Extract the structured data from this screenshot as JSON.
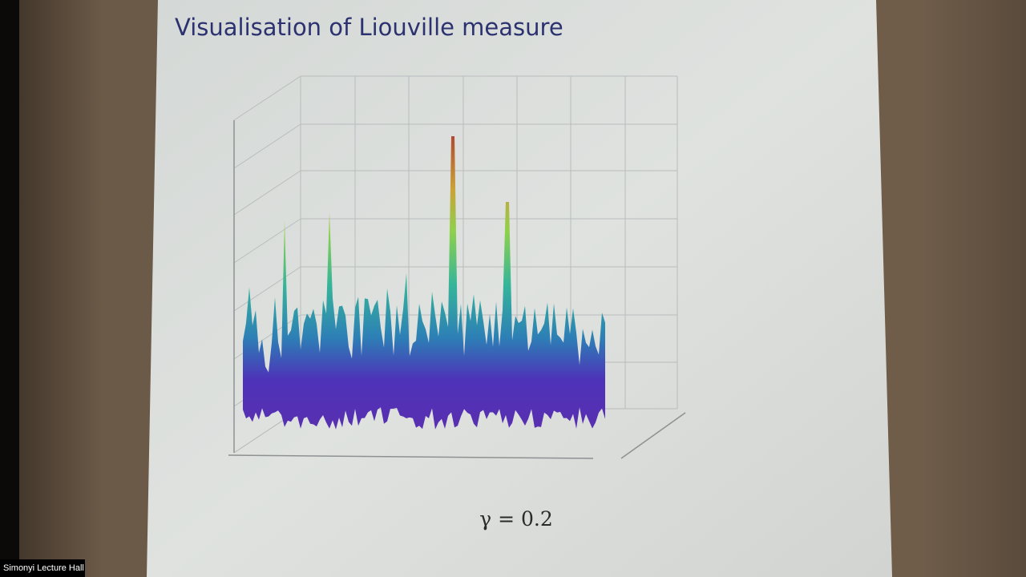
{
  "slide": {
    "title": "Visualisation of Liouville measure",
    "caption": "γ = 0.2"
  },
  "overlay": {
    "label": "Simonyi Lecture Hall"
  }
}
